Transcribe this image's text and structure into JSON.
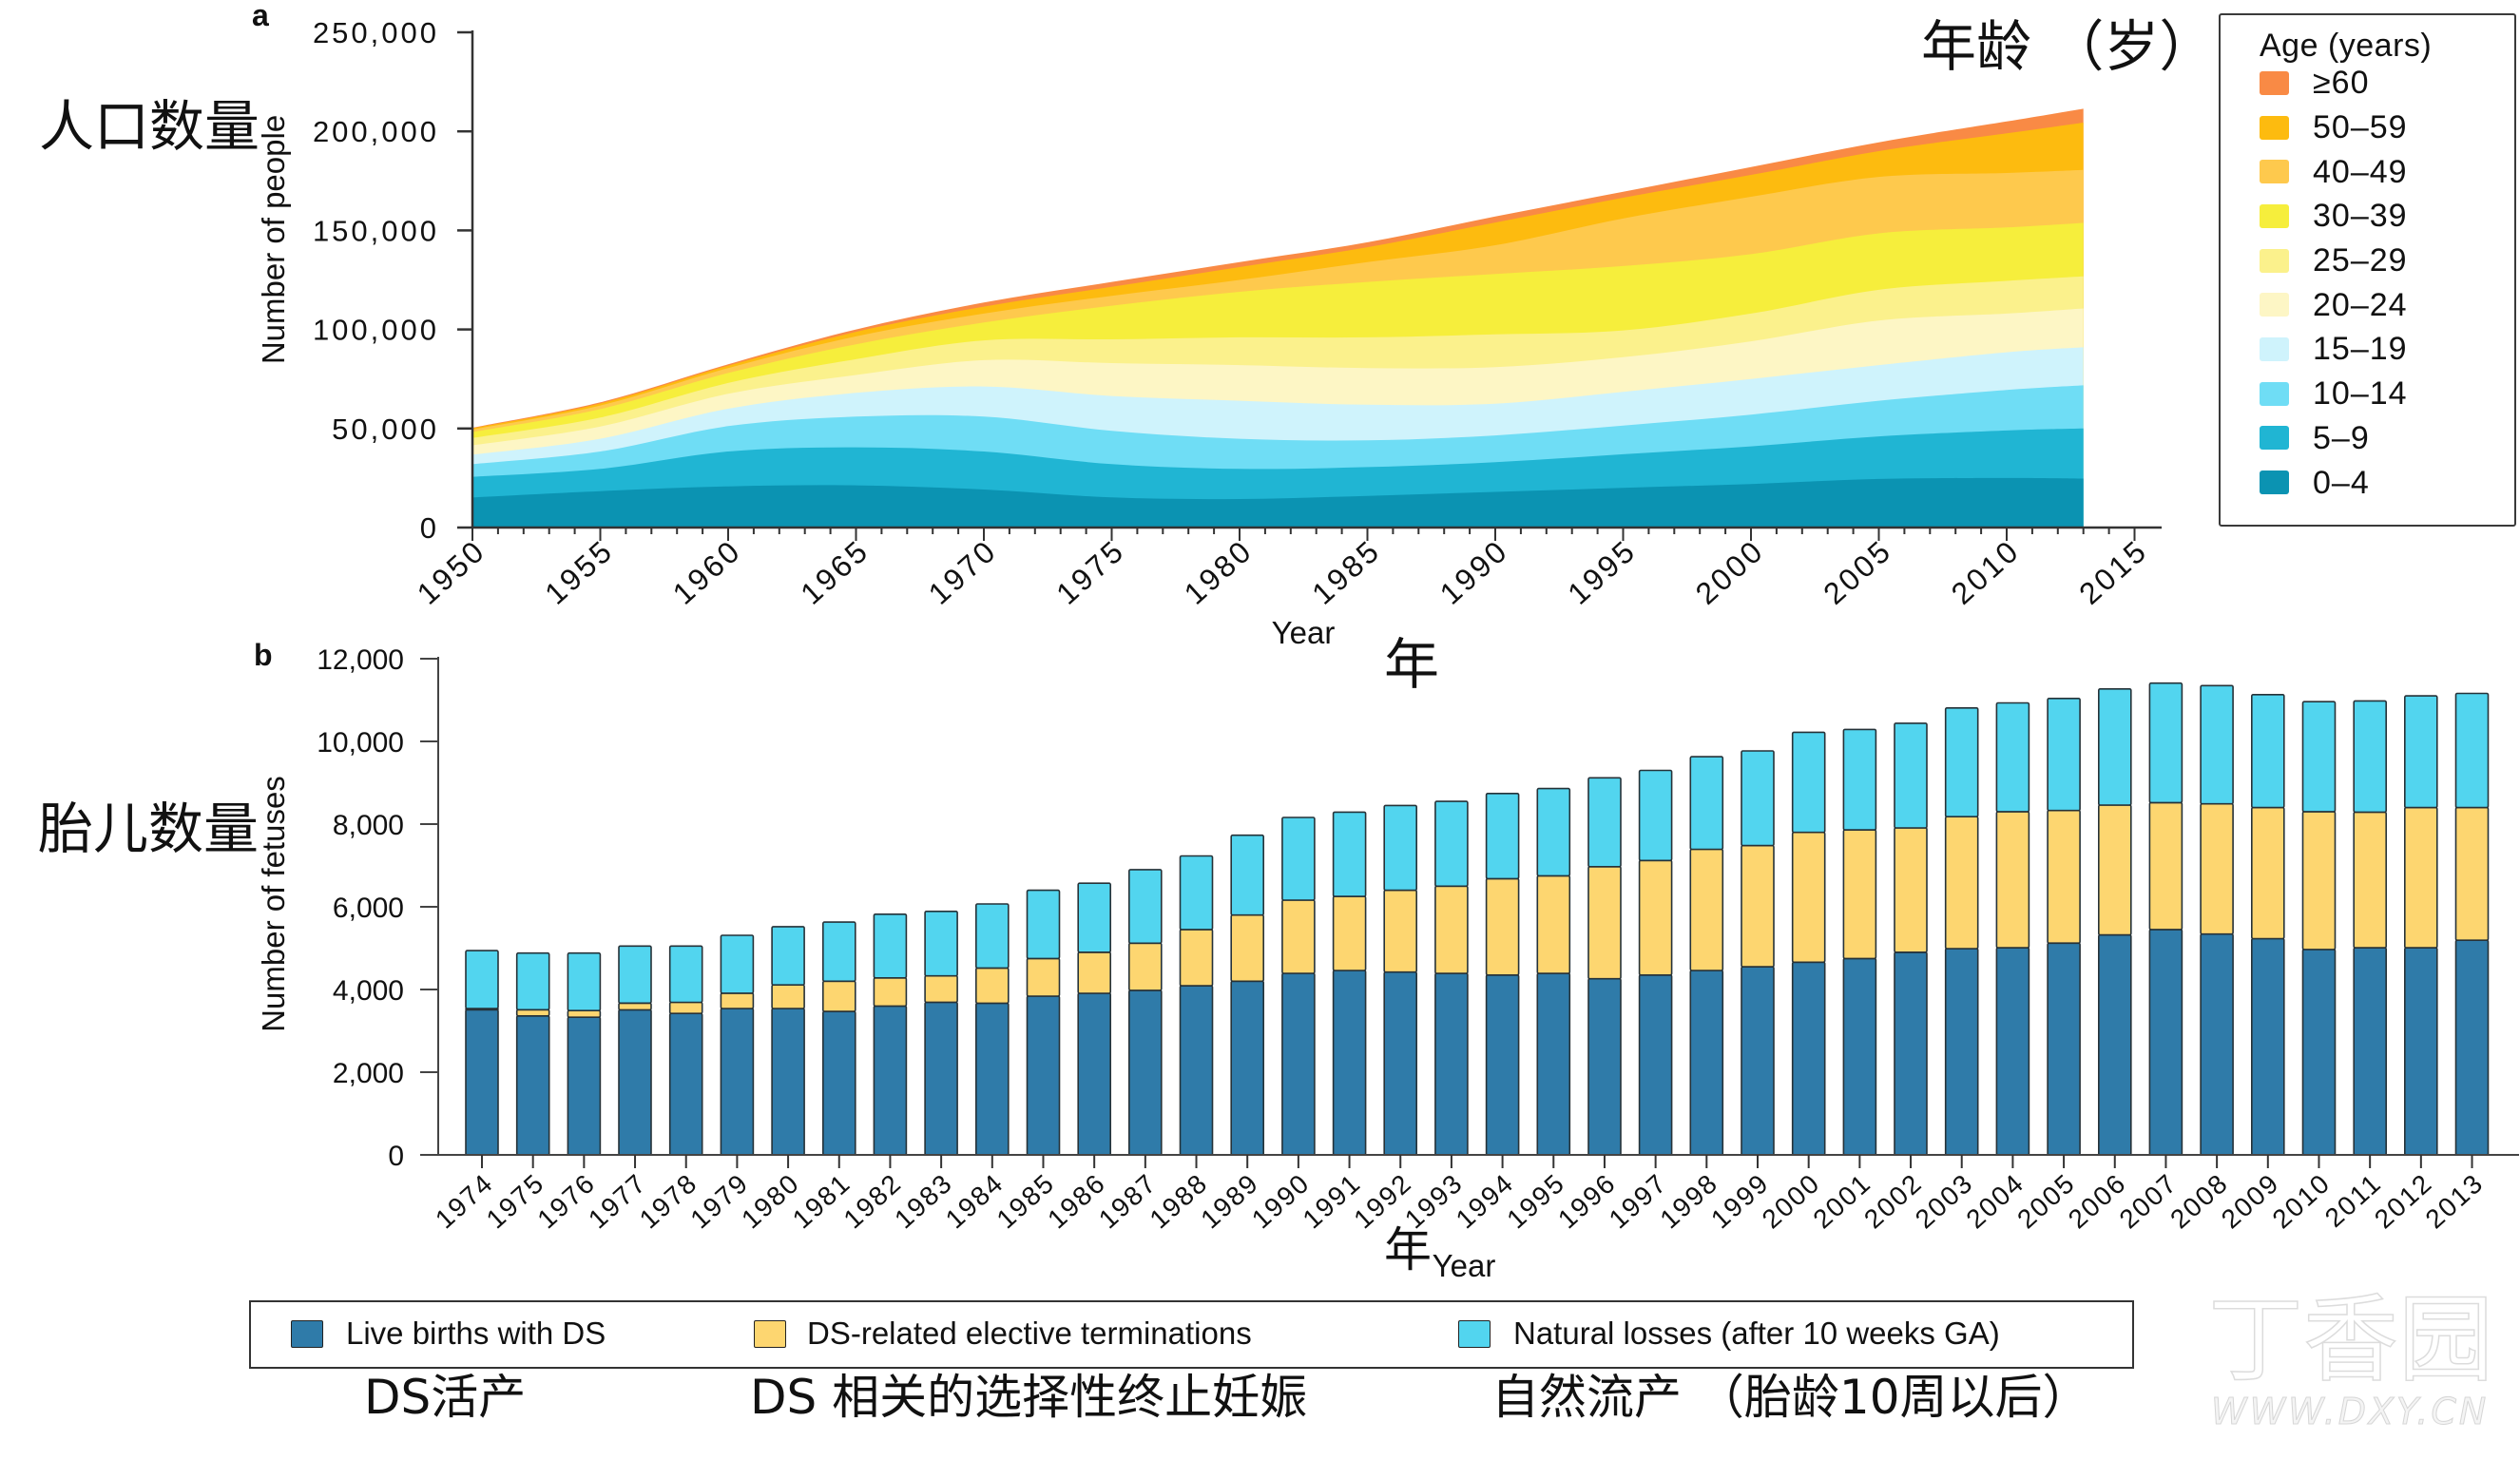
{
  "figure": {
    "panel_a_label": "a",
    "panel_b_label": "b"
  },
  "chart_data": [
    {
      "type": "area",
      "stacked": true,
      "panel": "a",
      "title": "",
      "xlabel": "Year",
      "ylabel": "Number of people",
      "xlim": [
        1950,
        2015
      ],
      "ylim": [
        0,
        250000
      ],
      "grid": false,
      "x": [
        1950,
        1955,
        1960,
        1965,
        1970,
        1975,
        1980,
        1985,
        1990,
        1995,
        2000,
        2005,
        2010,
        2013
      ],
      "xticks": {
        "values": [
          1950,
          1955,
          1960,
          1965,
          1970,
          1975,
          1980,
          1985,
          1990,
          1995,
          2000,
          2005,
          2010,
          2015
        ],
        "labels": [
          "1950",
          "1955",
          "1960",
          "1965",
          "1970",
          "1975",
          "1980",
          "1985",
          "1990",
          "1995",
          "2000",
          "2005",
          "2010",
          "2015"
        ]
      },
      "yticks": {
        "values": [
          0,
          50000,
          100000,
          150000,
          200000,
          250000
        ],
        "labels": [
          "0",
          "50,000",
          "100,000",
          "150,000",
          "200,000",
          "250,000"
        ]
      },
      "legend": {
        "title": "Age (years)",
        "placement": "right"
      },
      "series": [
        {
          "name": "≥60",
          "color": "#F98A45",
          "values": [
            300,
            600,
            700,
            1200,
            2100,
            2500,
            2500,
            2500,
            3000,
            3000,
            4000,
            4500,
            6000,
            7000
          ]
        },
        {
          "name": "50–59",
          "color": "#FDBB0F",
          "values": [
            600,
            1000,
            1200,
            2300,
            3500,
            4500,
            6500,
            7500,
            11500,
            10500,
            11000,
            13000,
            20000,
            23900
          ]
        },
        {
          "name": "40–49",
          "color": "#FEC94D",
          "values": [
            1300,
            1800,
            2500,
            4000,
            4500,
            5000,
            6000,
            10000,
            14500,
            24000,
            29000,
            28500,
            27500,
            26700
          ]
        },
        {
          "name": "30–39",
          "color": "#F6EE3C",
          "values": [
            3000,
            4300,
            5000,
            7500,
            9000,
            17000,
            23000,
            28000,
            30500,
            32500,
            30000,
            28500,
            27000,
            27000
          ]
        },
        {
          "name": "25–29",
          "color": "#FBF18C",
          "values": [
            3700,
            4500,
            5500,
            8000,
            10000,
            12000,
            14000,
            15500,
            16500,
            13500,
            14000,
            15500,
            16500,
            16200
          ]
        },
        {
          "name": "20–24",
          "color": "#FDF6C5",
          "values": [
            4700,
            6200,
            7500,
            9000,
            13300,
            16600,
            18000,
            18500,
            18500,
            17500,
            19000,
            22500,
            19500,
            19600
          ]
        },
        {
          "name": "15–19",
          "color": "#CFF3FC",
          "values": [
            4800,
            6400,
            8800,
            12000,
            15200,
            17600,
            19200,
            18000,
            16000,
            17000,
            18000,
            18000,
            19000,
            19200
          ]
        },
        {
          "name": "10–14",
          "color": "#6FDDF5",
          "values": [
            6400,
            8800,
            12800,
            15500,
            17600,
            16800,
            15200,
            13500,
            13500,
            14500,
            16000,
            18000,
            20500,
            21800
          ]
        },
        {
          "name": "5–9",
          "color": "#20B5D3",
          "values": [
            10400,
            11200,
            17600,
            19200,
            19200,
            16800,
            15200,
            14500,
            15000,
            17000,
            19000,
            21500,
            24000,
            25300
          ]
        },
        {
          "name": "0–4",
          "color": "#0B93B2",
          "values": [
            15200,
            18400,
            20800,
            21300,
            19200,
            15200,
            14400,
            16000,
            18000,
            20000,
            22000,
            24500,
            25000,
            24700
          ]
        }
      ]
    },
    {
      "type": "bar",
      "stacked": true,
      "panel": "b",
      "title": "",
      "xlabel": "Year",
      "ylabel": "Number of fetuses",
      "ylim": [
        0,
        12000
      ],
      "grid": false,
      "categories": [
        "1974",
        "1975",
        "1976",
        "1977",
        "1978",
        "1979",
        "1980",
        "1981",
        "1982",
        "1983",
        "1984",
        "1985",
        "1986",
        "1987",
        "1988",
        "1989",
        "1990",
        "1991",
        "1992",
        "1993",
        "1994",
        "1995",
        "1996",
        "1997",
        "1998",
        "1999",
        "2000",
        "2001",
        "2002",
        "2003",
        "2004",
        "2005",
        "2006",
        "2007",
        "2008",
        "2009",
        "2010",
        "2011",
        "2012",
        "2013"
      ],
      "yticks": {
        "values": [
          0,
          2000,
          4000,
          6000,
          8000,
          10000,
          12000
        ],
        "labels": [
          "0",
          "2,000",
          "4,000",
          "6,000",
          "8,000",
          "10,000",
          "12,000"
        ]
      },
      "legend": {
        "placement": "bottom"
      },
      "series": [
        {
          "name": "Live births with DS",
          "color": "#2F7BA9",
          "values": [
            3510,
            3360,
            3330,
            3510,
            3420,
            3540,
            3540,
            3470,
            3600,
            3690,
            3670,
            3840,
            3910,
            3980,
            4090,
            4200,
            4390,
            4460,
            4420,
            4390,
            4350,
            4390,
            4260,
            4350,
            4460,
            4550,
            4660,
            4750,
            4900,
            4990,
            5010,
            5120,
            5320,
            5450,
            5340,
            5230,
            4970,
            5010,
            5010,
            5190
          ]
        },
        {
          "name": "DS-related elective terminations",
          "color": "#FDD670",
          "values": [
            30,
            150,
            160,
            160,
            270,
            370,
            570,
            730,
            680,
            640,
            850,
            910,
            990,
            1140,
            1360,
            1600,
            1770,
            1790,
            1980,
            2110,
            2330,
            2360,
            2710,
            2770,
            2930,
            2930,
            3140,
            3110,
            3010,
            3190,
            3290,
            3210,
            3140,
            3070,
            3150,
            3170,
            3330,
            3280,
            3390,
            3210
          ]
        },
        {
          "name": "Natural losses (after 10 weeks GA)",
          "color": "#52D5EF",
          "values": [
            1400,
            1370,
            1390,
            1380,
            1360,
            1400,
            1410,
            1430,
            1540,
            1560,
            1550,
            1650,
            1670,
            1780,
            1780,
            1930,
            2000,
            2040,
            2050,
            2050,
            2060,
            2110,
            2150,
            2180,
            2240,
            2290,
            2420,
            2430,
            2530,
            2630,
            2630,
            2710,
            2810,
            2890,
            2860,
            2730,
            2660,
            2690,
            2700,
            2760
          ]
        }
      ]
    }
  ],
  "translations_zh": {
    "a_ylabel": "人口数量",
    "a_legend_title": "年龄 （岁）",
    "a_xlabel": "年",
    "b_ylabel": "胎儿数量",
    "b_xlabel": "年",
    "b_legend": [
      "DS活产",
      "DS 相关的选择性终止妊娠",
      "自然流产 （胎龄10周以后）"
    ]
  },
  "watermark": {
    "brand": "丁香园",
    "url": "WWW.DXY.CN"
  }
}
